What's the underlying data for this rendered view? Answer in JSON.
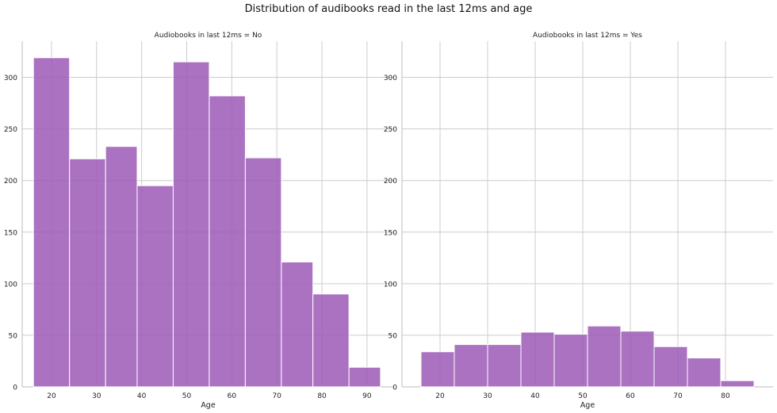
{
  "figure": {
    "title": "Distribution of audibooks read in the last 12ms and age"
  },
  "colors": {
    "bar_fill": "#9b59b6",
    "bar_edge": "#ffffff",
    "grid": "#cccccc",
    "axis": "#bbbbbb",
    "text": "#222222"
  },
  "chart_data": [
    {
      "type": "bar",
      "title": "Audiobooks in last 12ms = No",
      "xlabel": "Age",
      "ylabel": "",
      "grid": true,
      "xlim": [
        13.5,
        96
      ],
      "ylim": [
        0,
        335
      ],
      "xticks": [
        20,
        30,
        40,
        50,
        60,
        70,
        80,
        90
      ],
      "yticks": [
        0,
        50,
        100,
        150,
        200,
        250,
        300
      ],
      "bin_edges": [
        16,
        24,
        32,
        39,
        47,
        55,
        63,
        71,
        78,
        86,
        93
      ],
      "values": [
        319,
        221,
        233,
        195,
        315,
        282,
        222,
        121,
        90,
        19
      ]
    },
    {
      "type": "bar",
      "title": "Audiobooks in last 12ms = Yes",
      "xlabel": "Age",
      "ylabel": "",
      "grid": true,
      "xlim": [
        12,
        90
      ],
      "ylim": [
        0,
        335
      ],
      "xticks": [
        20,
        30,
        40,
        50,
        60,
        70,
        80
      ],
      "yticks": [
        0,
        50,
        100,
        150,
        200,
        250,
        300
      ],
      "bin_edges": [
        16,
        23,
        30,
        37,
        44,
        51,
        58,
        65,
        72,
        79,
        86
      ],
      "values": [
        34,
        41,
        41,
        53,
        51,
        59,
        54,
        39,
        28,
        6
      ]
    }
  ]
}
